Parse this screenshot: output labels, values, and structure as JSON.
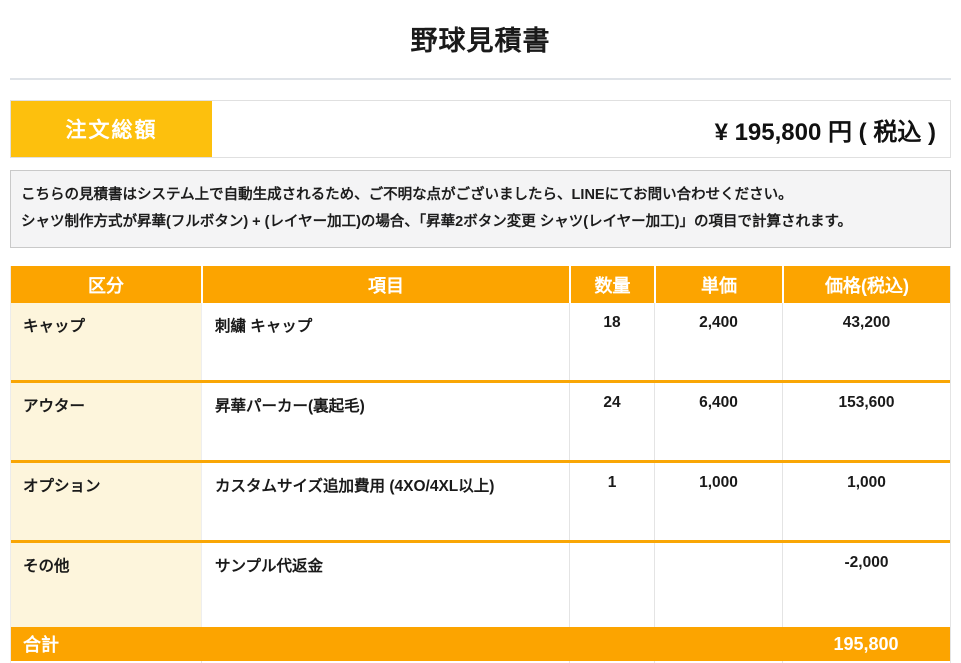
{
  "page": {
    "title": "野球見積書"
  },
  "summary": {
    "label": "注文総額",
    "amount": "¥ 195,800 円 ( 税込 )"
  },
  "notice": {
    "line1": "こちらの見積書はシステム上で自動生成されるため、ご不明な点がございましたら、LINEにてお問い合わせください。",
    "line2": "シャツ制作方式が昇華(フルボタン) + (レイヤー加工)の場合、「昇華2ボタン変更 シャツ(レイヤー加工)」の項目で計算されます。"
  },
  "table": {
    "headers": {
      "category": "区分",
      "item": "項目",
      "qty": "数量",
      "unit_price": "単価",
      "price": "価格(税込)"
    },
    "rows": [
      {
        "category": "キャップ",
        "item": "刺繍 キャップ",
        "qty": "18",
        "unit_price": "2,400",
        "price": "43,200"
      },
      {
        "category": "アウター",
        "item": "昇華パーカー(裏起毛)",
        "qty": "24",
        "unit_price": "6,400",
        "price": "153,600"
      },
      {
        "category": "オプション",
        "item": "カスタムサイズ追加費用 (4XO/4XL以上)",
        "qty": "1",
        "unit_price": "1,000",
        "price": "1,000"
      },
      {
        "category": "その他",
        "item": "サンプル代返金",
        "qty": "",
        "unit_price": "",
        "price": "-2,000"
      }
    ],
    "total": {
      "label": "合計",
      "value": "195,800"
    }
  },
  "colors": {
    "accent_yellow": "#fdc00d",
    "accent_orange": "#fca400",
    "row_divider_orange": "#f9a605",
    "category_cell_cream": "#fdf5dc",
    "notice_bg": "#f4f4f5"
  }
}
